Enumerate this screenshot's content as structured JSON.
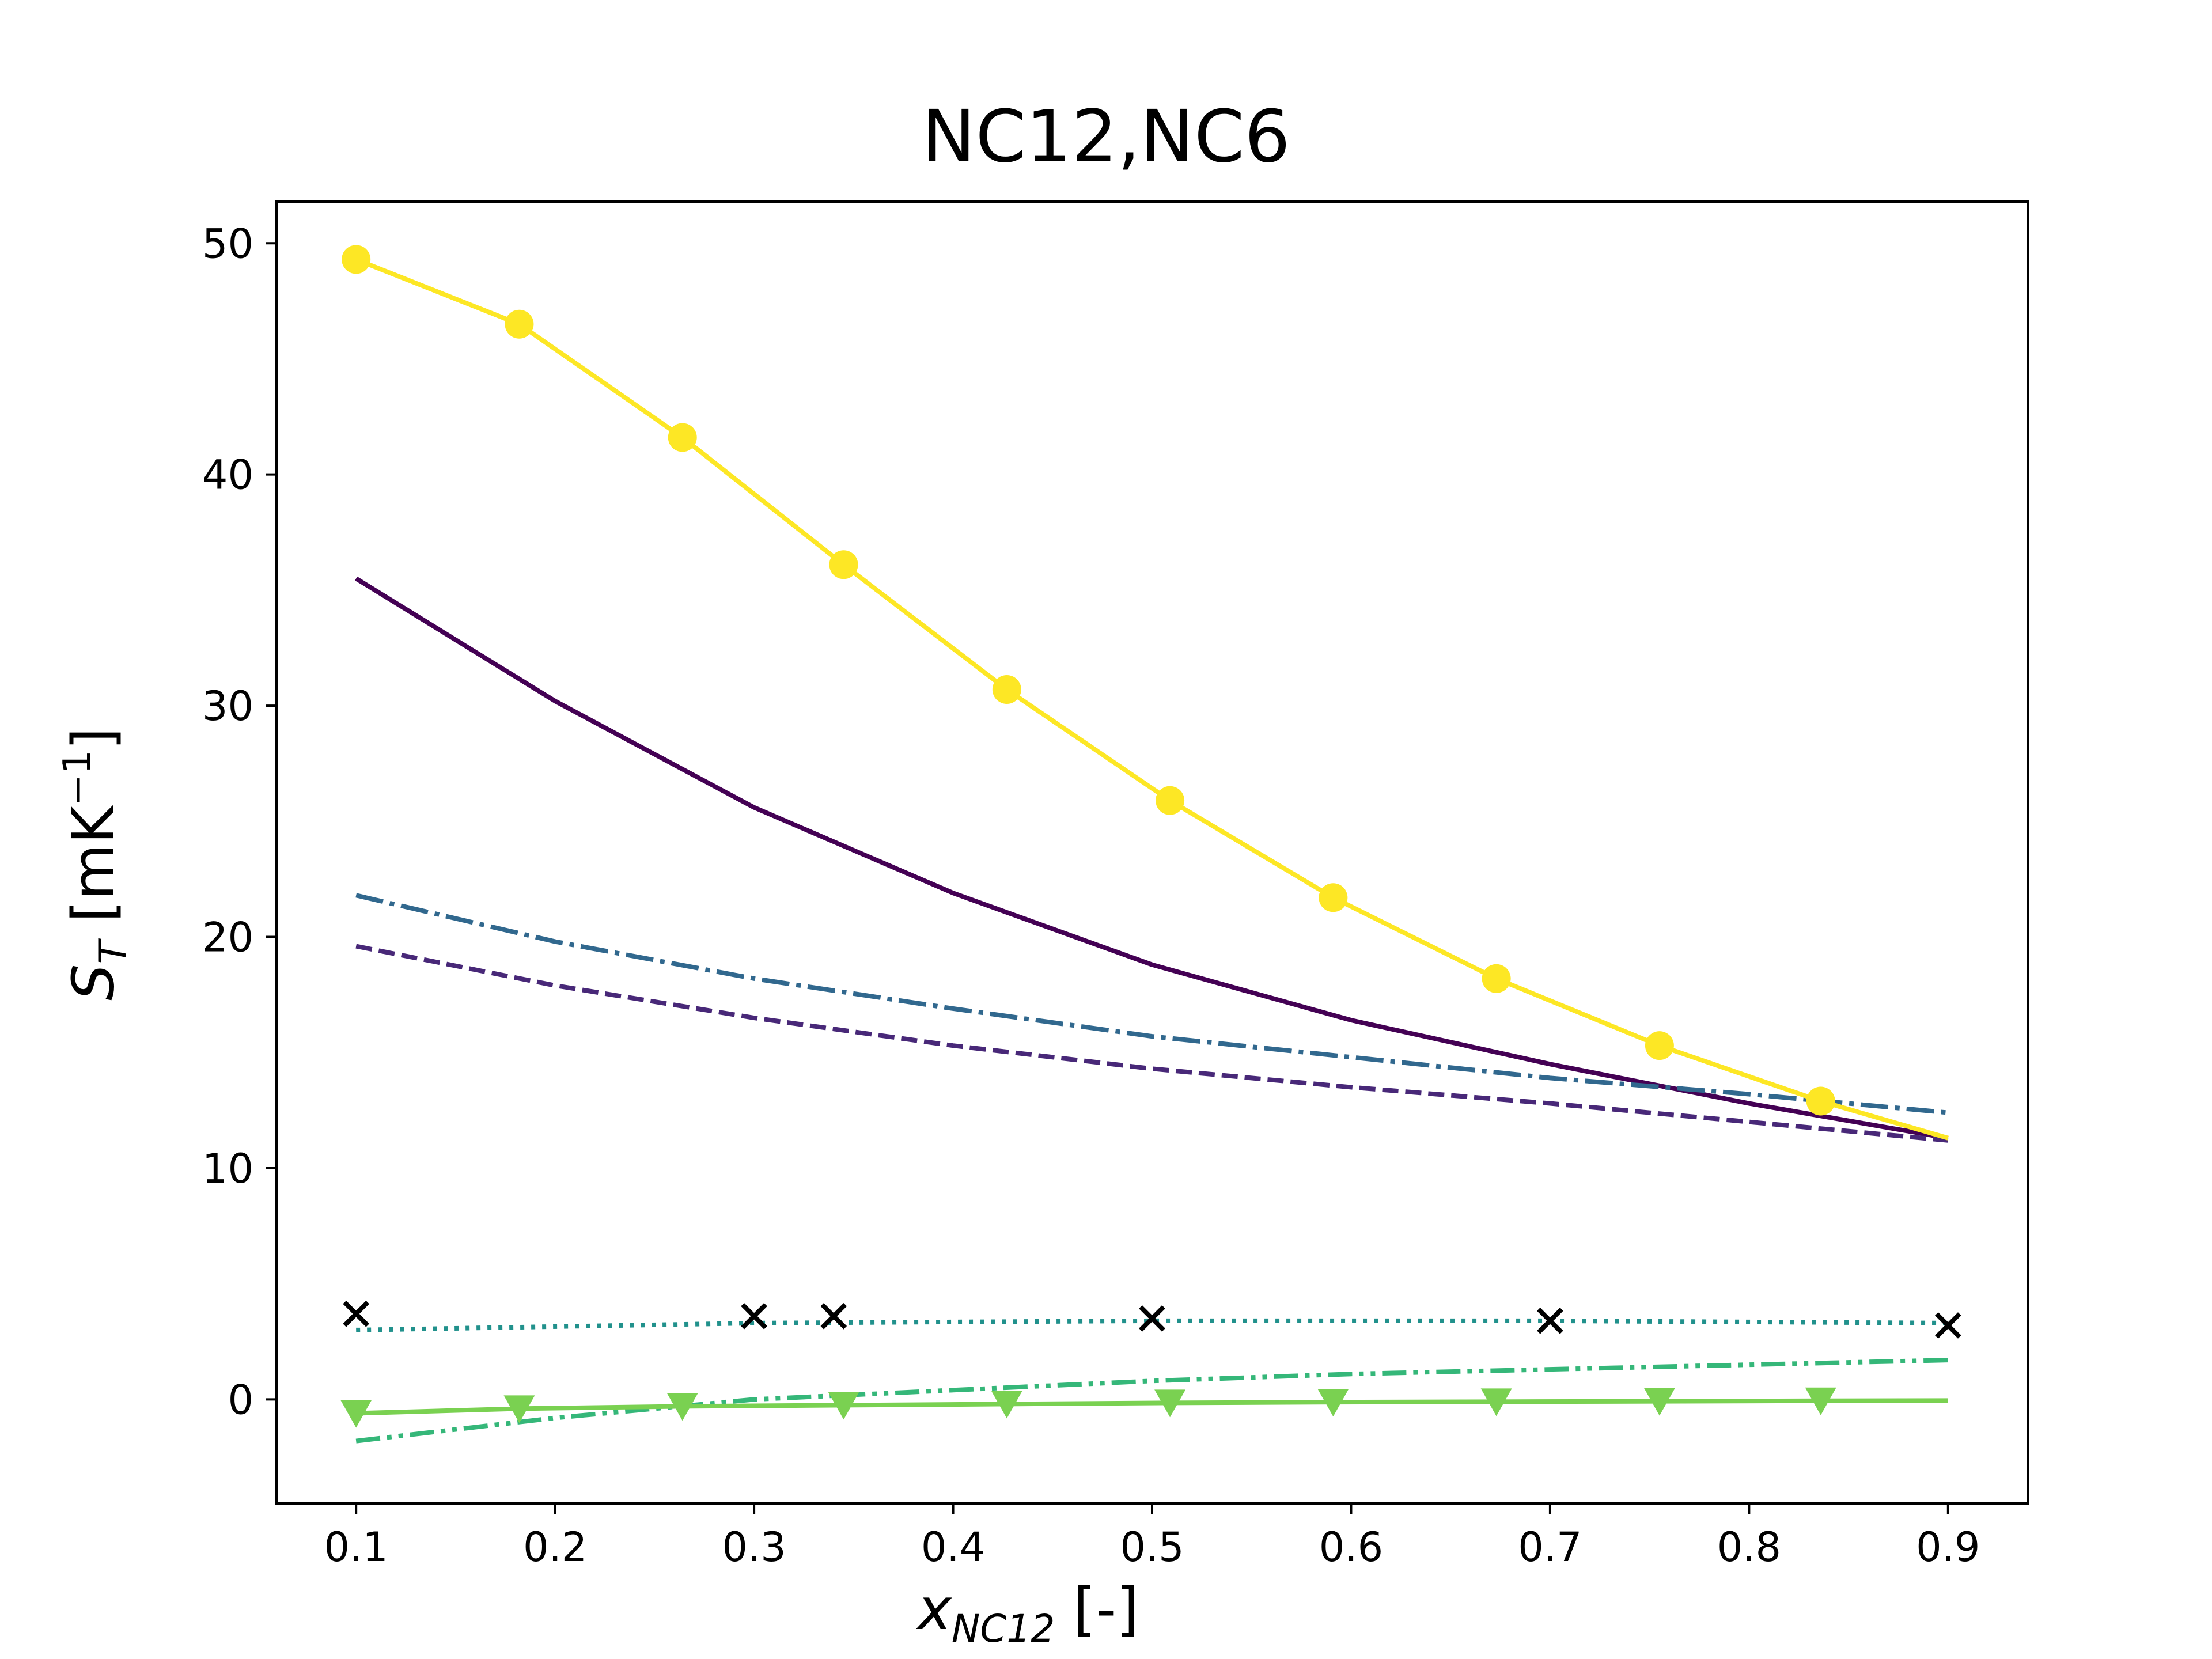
{
  "title": "NC12,NC6",
  "ylabel": {
    "var": "S",
    "sub": "T",
    "bracket_open": "[mK",
    "sup": "−1",
    "bracket_close": "]"
  },
  "xlabel": {
    "var": "x",
    "sub": "NC12",
    "unit": "[-]"
  },
  "chart_data": {
    "type": "line",
    "title": "NC12,NC6",
    "xlabel": "x_NC12 [-]",
    "ylabel": "S_T [mK^-1]",
    "xlim": [
      0.06,
      0.94
    ],
    "ylim": [
      -4.5,
      51.8
    ],
    "xticks": [
      0.1,
      0.2,
      0.3,
      0.4,
      0.5,
      0.6,
      0.7,
      0.8,
      0.9
    ],
    "xtick_labels": [
      "0.1",
      "0.2",
      "0.3",
      "0.4",
      "0.5",
      "0.6",
      "0.7",
      "0.8",
      "0.9"
    ],
    "yticks": [
      0,
      10,
      20,
      30,
      40,
      50
    ],
    "ytick_labels": [
      "0",
      "10",
      "20",
      "30",
      "40",
      "50"
    ],
    "grid": false,
    "legend": "none",
    "series": [
      {
        "color": "#440154",
        "linestyle": "solid",
        "marker": "none",
        "x": [
          0.1,
          0.2,
          0.3,
          0.4,
          0.5,
          0.6,
          0.7,
          0.8,
          0.9
        ],
        "y": [
          35.5,
          30.2,
          25.6,
          21.9,
          18.8,
          16.4,
          14.5,
          12.8,
          11.3
        ]
      },
      {
        "color": "#482878",
        "linestyle": "dashed",
        "marker": "none",
        "x": [
          0.1,
          0.2,
          0.3,
          0.4,
          0.5,
          0.6,
          0.7,
          0.8,
          0.9
        ],
        "y": [
          19.6,
          17.9,
          16.5,
          15.3,
          14.3,
          13.5,
          12.8,
          12.0,
          11.2
        ]
      },
      {
        "color": "#31688e",
        "linestyle": "dashdot",
        "marker": "none",
        "x": [
          0.1,
          0.2,
          0.3,
          0.4,
          0.5,
          0.6,
          0.7,
          0.8,
          0.9
        ],
        "y": [
          21.8,
          19.8,
          18.2,
          16.9,
          15.7,
          14.8,
          13.9,
          13.2,
          12.4
        ]
      },
      {
        "color": "#21918c",
        "linestyle": "dotted",
        "marker": "none",
        "x": [
          0.1,
          0.3,
          0.5,
          0.7,
          0.9
        ],
        "y": [
          3.0,
          3.3,
          3.4,
          3.4,
          3.3
        ]
      },
      {
        "color": "#35b779",
        "linestyle": "dashdotdot",
        "marker": "none",
        "x": [
          0.1,
          0.2,
          0.3,
          0.4,
          0.5,
          0.6,
          0.7,
          0.8,
          0.9
        ],
        "y": [
          -1.8,
          -0.8,
          0.0,
          0.4,
          0.8,
          1.1,
          1.3,
          1.5,
          1.7
        ]
      },
      {
        "color": "#7ad151",
        "linestyle": "solid",
        "marker": "triangle-down",
        "x": [
          0.1,
          0.182,
          0.264,
          0.345,
          0.427,
          0.509,
          0.591,
          0.673,
          0.755,
          0.836,
          0.9
        ],
        "y": [
          -0.6,
          -0.4,
          -0.3,
          -0.25,
          -0.2,
          -0.15,
          -0.12,
          -0.1,
          -0.08,
          -0.06,
          -0.05
        ],
        "marker_x": [
          0.1,
          0.182,
          0.264,
          0.345,
          0.427,
          0.509,
          0.591,
          0.673,
          0.755,
          0.836
        ],
        "marker_y": [
          -0.6,
          -0.4,
          -0.3,
          -0.25,
          -0.2,
          -0.15,
          -0.12,
          -0.1,
          -0.08,
          -0.06
        ]
      },
      {
        "color": "#fde725",
        "linestyle": "solid",
        "marker": "circle",
        "x": [
          0.1,
          0.182,
          0.264,
          0.345,
          0.427,
          0.509,
          0.591,
          0.673,
          0.755,
          0.836,
          0.9
        ],
        "y": [
          49.3,
          46.5,
          41.6,
          36.1,
          30.7,
          25.9,
          21.7,
          18.2,
          15.3,
          12.9,
          11.3
        ],
        "marker_x": [
          0.1,
          0.182,
          0.264,
          0.345,
          0.427,
          0.509,
          0.591,
          0.673,
          0.755,
          0.836
        ],
        "marker_y": [
          49.3,
          46.5,
          41.6,
          36.1,
          30.7,
          25.9,
          21.7,
          18.2,
          15.3,
          12.9
        ]
      },
      {
        "color": "#000000",
        "linestyle": "none",
        "marker": "x",
        "x": [
          0.1,
          0.3,
          0.34,
          0.5,
          0.7,
          0.9
        ],
        "y": [
          3.7,
          3.6,
          3.6,
          3.5,
          3.4,
          3.2
        ]
      }
    ]
  }
}
